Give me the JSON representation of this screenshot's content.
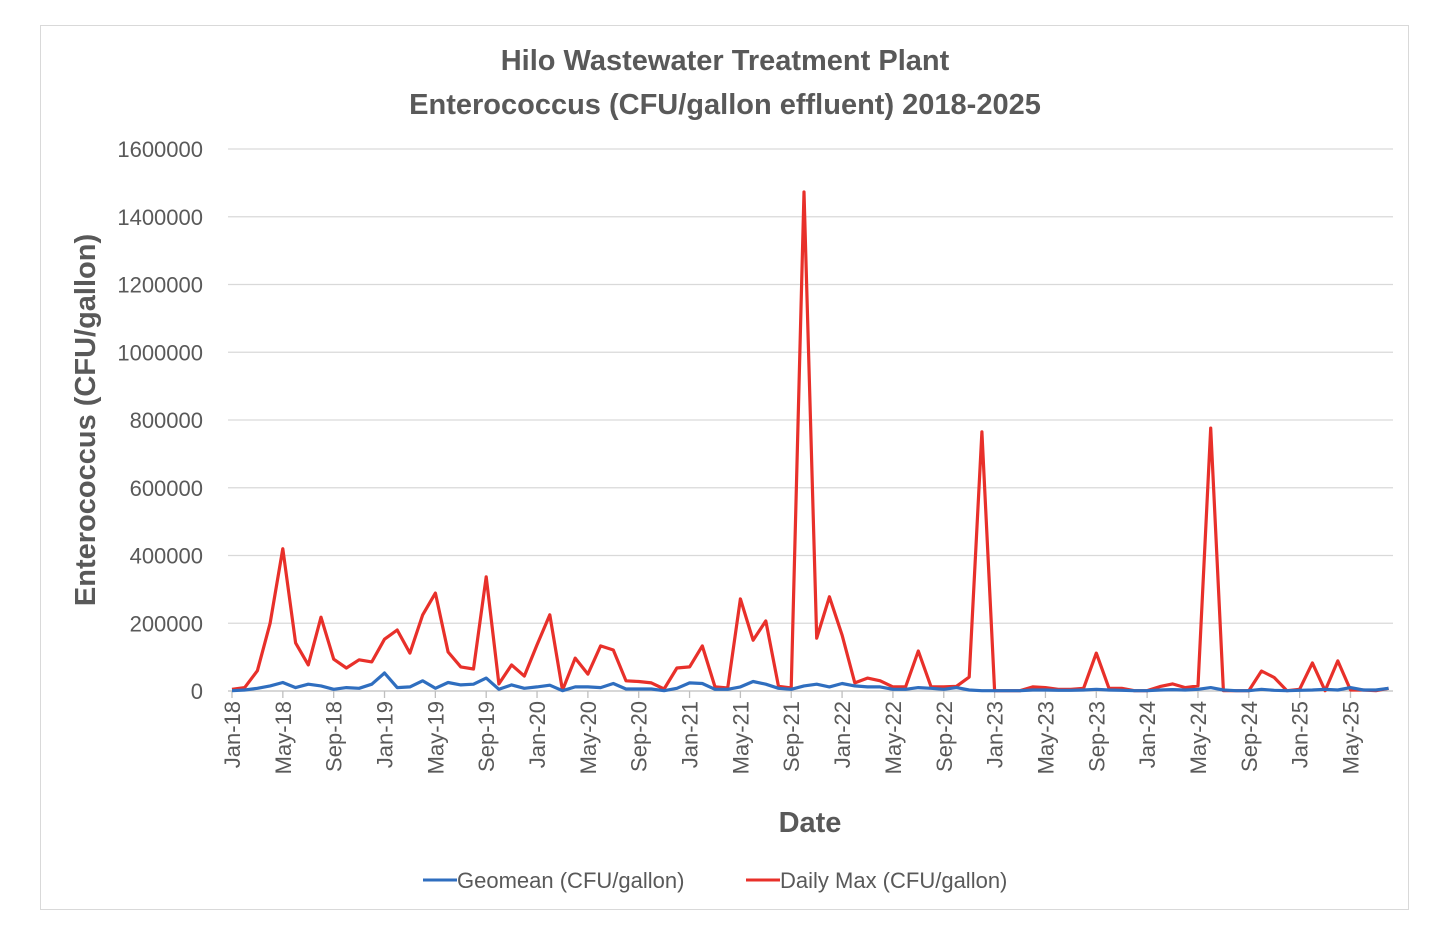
{
  "chart_data": {
    "type": "line",
    "title": [
      "Hilo Wastewater Treatment Plant",
      "Enterococcus (CFU/gallon effluent) 2018-2025"
    ],
    "xlabel": "Date",
    "ylabel": "Enterococcus (CFU/gallon)",
    "ylim": [
      0,
      1600000
    ],
    "yticks": [
      "0",
      "200000",
      "400000",
      "600000",
      "800000",
      "1000000",
      "1200000",
      "1400000",
      "1600000"
    ],
    "ytick_values": [
      0,
      200000,
      400000,
      600000,
      800000,
      1000000,
      1200000,
      1400000,
      1600000
    ],
    "grid": true,
    "legend_position": "bottom",
    "x_tick_every": 4,
    "x": [
      "Jan-18",
      "Feb-18",
      "Mar-18",
      "Apr-18",
      "May-18",
      "Jun-18",
      "Jul-18",
      "Aug-18",
      "Sep-18",
      "Oct-18",
      "Nov-18",
      "Dec-18",
      "Jan-19",
      "Feb-19",
      "Mar-19",
      "Apr-19",
      "May-19",
      "Jun-19",
      "Jul-19",
      "Aug-19",
      "Sep-19",
      "Oct-19",
      "Nov-19",
      "Dec-19",
      "Jan-20",
      "Feb-20",
      "Mar-20",
      "Apr-20",
      "May-20",
      "Jun-20",
      "Jul-20",
      "Aug-20",
      "Sep-20",
      "Oct-20",
      "Nov-20",
      "Dec-20",
      "Jan-21",
      "Feb-21",
      "Mar-21",
      "Apr-21",
      "May-21",
      "Jun-21",
      "Jul-21",
      "Aug-21",
      "Sep-21",
      "Oct-21",
      "Nov-21",
      "Dec-21",
      "Jan-22",
      "Feb-22",
      "Mar-22",
      "Apr-22",
      "May-22",
      "Jun-22",
      "Jul-22",
      "Aug-22",
      "Sep-22",
      "Oct-22",
      "Nov-22",
      "Dec-22",
      "Jan-23",
      "Feb-23",
      "Mar-23",
      "Apr-23",
      "May-23",
      "Jun-23",
      "Jul-23",
      "Aug-23",
      "Sep-23",
      "Oct-23",
      "Nov-23",
      "Dec-23",
      "Jan-24",
      "Feb-24",
      "Mar-24",
      "Apr-24",
      "May-24",
      "Jun-24",
      "Jul-24",
      "Aug-24",
      "Sep-24",
      "Oct-24",
      "Nov-24",
      "Dec-24",
      "Jan-25",
      "Feb-25",
      "Mar-25",
      "Apr-25",
      "May-25",
      "Jun-25",
      "Jul-25",
      "Aug-25"
    ],
    "series": [
      {
        "name": "Geomean (CFU/gallon)",
        "color": "#2f6ebf",
        "values": [
          1000,
          3000,
          8000,
          15000,
          25000,
          10000,
          20000,
          15000,
          5000,
          10000,
          8000,
          20000,
          53000,
          10000,
          12000,
          30000,
          8000,
          25000,
          18000,
          20000,
          38000,
          5000,
          18000,
          8000,
          12000,
          17000,
          1000,
          12000,
          12000,
          10000,
          22000,
          6000,
          6000,
          6000,
          1000,
          8000,
          24000,
          22000,
          5000,
          5000,
          12000,
          28000,
          20000,
          8000,
          5000,
          15000,
          20000,
          12000,
          22000,
          15000,
          12000,
          12000,
          5000,
          5000,
          10000,
          8000,
          5000,
          10000,
          3000,
          1000,
          1000,
          1000,
          1000,
          3000,
          3000,
          2000,
          2000,
          3000,
          5000,
          3000,
          2000,
          1000,
          1000,
          3000,
          4000,
          3000,
          5000,
          10000,
          3000,
          1000,
          1000,
          5000,
          2000,
          1000,
          2000,
          3000,
          5000,
          3000,
          10000,
          3000,
          3000,
          8000
        ]
      },
      {
        "name": "Daily Max (CFU/gallon)",
        "color": "#e8302a",
        "values": [
          5000,
          10000,
          60000,
          200000,
          420000,
          142000,
          77000,
          218000,
          94000,
          68000,
          92000,
          86000,
          153000,
          180000,
          112000,
          224000,
          289000,
          115000,
          71000,
          65000,
          337000,
          21000,
          77000,
          44000,
          136000,
          225000,
          2000,
          97000,
          50000,
          133000,
          121000,
          30000,
          28000,
          24000,
          6000,
          68000,
          71000,
          133000,
          12000,
          9000,
          272000,
          150000,
          207000,
          14000,
          9000,
          1473000,
          156000,
          278000,
          165000,
          24000,
          38000,
          30000,
          12000,
          12000,
          118000,
          12000,
          12000,
          14000,
          41000,
          765000,
          1000,
          1000,
          1000,
          12000,
          10000,
          5000,
          5000,
          8000,
          112000,
          8000,
          8000,
          1000,
          1000,
          13000,
          21000,
          10000,
          15000,
          776000,
          1000,
          1000,
          1000,
          59000,
          40000,
          1000,
          5000,
          83000,
          1000,
          89000,
          3000,
          3000,
          1000,
          8000
        ]
      }
    ]
  }
}
